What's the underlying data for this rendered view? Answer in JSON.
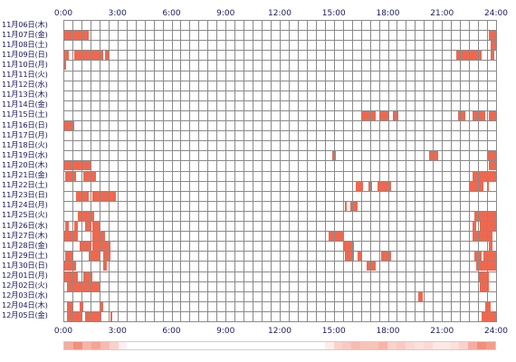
{
  "time_labels": [
    "0:00",
    "3:00",
    "6:00",
    "9:00",
    "12:00",
    "15:00",
    "18:00",
    "21:00",
    "24:00"
  ],
  "colors": {
    "activity": "#ee6850",
    "grid": "#8a8a8a",
    "heat_base": "#ffffff",
    "heat_max": "#ee6850"
  },
  "days": [
    {
      "label": "11月06日(木)",
      "bars": []
    },
    {
      "label": "11月07日(金)",
      "bars": [
        [
          0.0,
          1.4
        ],
        [
          23.6,
          24.0
        ]
      ]
    },
    {
      "label": "11月08日(土)",
      "bars": [
        [
          23.7,
          24.0
        ]
      ]
    },
    {
      "label": "11月09日(日)",
      "bars": [
        [
          0.0,
          0.3
        ],
        [
          0.6,
          2.2
        ],
        [
          2.3,
          2.5
        ],
        [
          21.8,
          23.2
        ],
        [
          23.7,
          23.9
        ]
      ]
    },
    {
      "label": "11月10日(月)",
      "bars": [
        [
          0.0,
          0.15
        ]
      ]
    },
    {
      "label": "11月11日(火)",
      "bars": []
    },
    {
      "label": "11月12日(水)",
      "bars": []
    },
    {
      "label": "11月13日(木)",
      "bars": []
    },
    {
      "label": "11月14日(金)",
      "bars": []
    },
    {
      "label": "11月15日(土)",
      "bars": [
        [
          16.5,
          17.3
        ],
        [
          17.5,
          18.1
        ],
        [
          18.3,
          18.6
        ],
        [
          21.9,
          22.3
        ],
        [
          22.7,
          23.4
        ],
        [
          23.6,
          24.0
        ]
      ]
    },
    {
      "label": "11月16日(日)",
      "bars": [
        [
          0.0,
          0.6
        ]
      ]
    },
    {
      "label": "11月17日(月)",
      "bars": []
    },
    {
      "label": "11月18日(火)",
      "bars": []
    },
    {
      "label": "11月19日(水)",
      "bars": [
        [
          14.9,
          15.1
        ],
        [
          20.3,
          20.8
        ],
        [
          23.5,
          24.0
        ]
      ]
    },
    {
      "label": "11月20日(木)",
      "bars": [
        [
          0.0,
          1.5
        ],
        [
          23.6,
          24.0
        ]
      ]
    },
    {
      "label": "11月21日(金)",
      "bars": [
        [
          0.1,
          0.7
        ],
        [
          1.1,
          1.8
        ],
        [
          22.7,
          24.0
        ]
      ]
    },
    {
      "label": "11月22日(土)",
      "bars": [
        [
          16.2,
          16.6
        ],
        [
          16.9,
          17.1
        ],
        [
          17.4,
          18.2
        ],
        [
          22.5,
          23.3
        ],
        [
          23.5,
          23.6
        ]
      ]
    },
    {
      "label": "11月23日(日)",
      "bars": [
        [
          0.7,
          1.4
        ],
        [
          1.6,
          2.9
        ]
      ]
    },
    {
      "label": "11月24日(月)",
      "bars": [
        [
          15.6,
          15.7
        ],
        [
          15.9,
          16.3
        ]
      ]
    },
    {
      "label": "11月25日(火)",
      "bars": [
        [
          0.8,
          1.7
        ],
        [
          22.8,
          23.3
        ],
        [
          23.2,
          24.0
        ]
      ]
    },
    {
      "label": "11月26日(水)",
      "bars": [
        [
          0.1,
          0.3
        ],
        [
          0.6,
          0.8
        ],
        [
          1.2,
          1.5
        ],
        [
          1.6,
          2.0
        ],
        [
          22.7,
          22.9
        ],
        [
          23.1,
          24.0
        ]
      ]
    },
    {
      "label": "11月27日(木)",
      "bars": [
        [
          0.0,
          0.8
        ],
        [
          1.6,
          2.3
        ],
        [
          14.7,
          15.5
        ],
        [
          22.7,
          23.8
        ]
      ]
    },
    {
      "label": "11月28日(金)",
      "bars": [
        [
          0.9,
          1.5
        ],
        [
          1.6,
          2.6
        ],
        [
          15.5,
          16.1
        ],
        [
          23.6,
          23.8
        ]
      ]
    },
    {
      "label": "11月29日(土)",
      "bars": [
        [
          0.1,
          0.5
        ],
        [
          1.4,
          2.0
        ],
        [
          2.2,
          2.6
        ],
        [
          15.6,
          16.1
        ],
        [
          16.3,
          16.5
        ],
        [
          17.6,
          18.2
        ],
        [
          22.8,
          23.2
        ],
        [
          23.3,
          24.0
        ]
      ]
    },
    {
      "label": "11月30日(日)",
      "bars": [
        [
          0.0,
          0.7
        ],
        [
          2.2,
          2.4
        ],
        [
          16.8,
          17.3
        ],
        [
          22.9,
          24.0
        ]
      ]
    },
    {
      "label": "12月01日(月)",
      "bars": [
        [
          0.0,
          0.8
        ],
        [
          1.1,
          1.6
        ],
        [
          23.0,
          23.6
        ]
      ]
    },
    {
      "label": "12月02日(火)",
      "bars": [
        [
          0.2,
          2.0
        ],
        [
          23.1,
          23.6
        ]
      ]
    },
    {
      "label": "12月03日(水)",
      "bars": [
        [
          19.7,
          19.95
        ]
      ]
    },
    {
      "label": "12月04日(木)",
      "bars": [
        [
          0.2,
          0.5
        ],
        [
          0.9,
          1.1
        ],
        [
          2.0,
          2.2
        ],
        [
          23.4,
          23.7
        ]
      ]
    },
    {
      "label": "12月05日(金)",
      "bars": [
        [
          0.2,
          1.0
        ],
        [
          1.2,
          2.1
        ],
        [
          2.6,
          2.7
        ],
        [
          23.2,
          24.0
        ]
      ]
    }
  ],
  "summary_profile": [
    0.55,
    0.75,
    0.5,
    0.6,
    0.45,
    0.3,
    0.1,
    0,
    0,
    0,
    0,
    0,
    0,
    0,
    0,
    0,
    0,
    0,
    0,
    0,
    0,
    0,
    0,
    0,
    0,
    0,
    0,
    0,
    0,
    0.12,
    0.3,
    0.35,
    0.45,
    0.4,
    0.4,
    0.5,
    0.3,
    0.35,
    0.25,
    0.2,
    0.25,
    0.15,
    0.15,
    0.2,
    0.3,
    0.55,
    0.75,
    0.65
  ]
}
